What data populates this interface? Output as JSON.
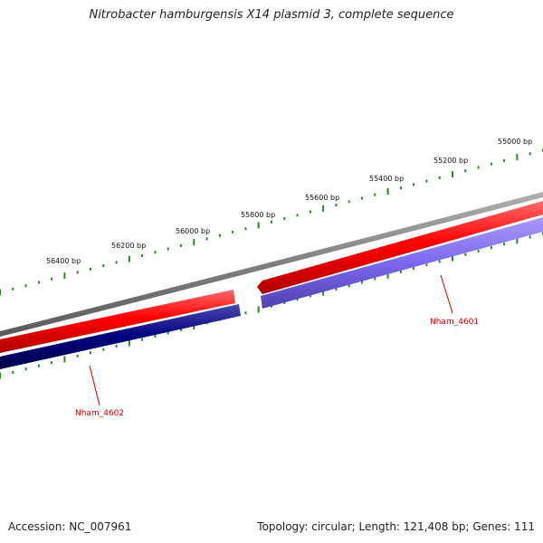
{
  "title": "Nitrobacter hamburgensis X14 plasmid 3, complete sequence",
  "footer": {
    "accession": "Accession: NC_007961",
    "summary": "Topology: circular; Length: 121,408 bp; Genes: 111"
  },
  "scale": {
    "labels": [
      "56400 bp",
      "56200 bp",
      "56000 bp",
      "55800 bp",
      "55600 bp",
      "55400 bp",
      "55200 bp",
      "55000 bp"
    ]
  },
  "genes": [
    {
      "name": "Nham_4602",
      "strand": "reverse",
      "color": "#000080"
    },
    {
      "name": "Nham_4601",
      "strand": "reverse",
      "color": "#7b68ee"
    }
  ],
  "colors": {
    "backbone": "#808080",
    "cds": "#ff0000",
    "ticks": "#228b22",
    "label": "#d00000"
  }
}
